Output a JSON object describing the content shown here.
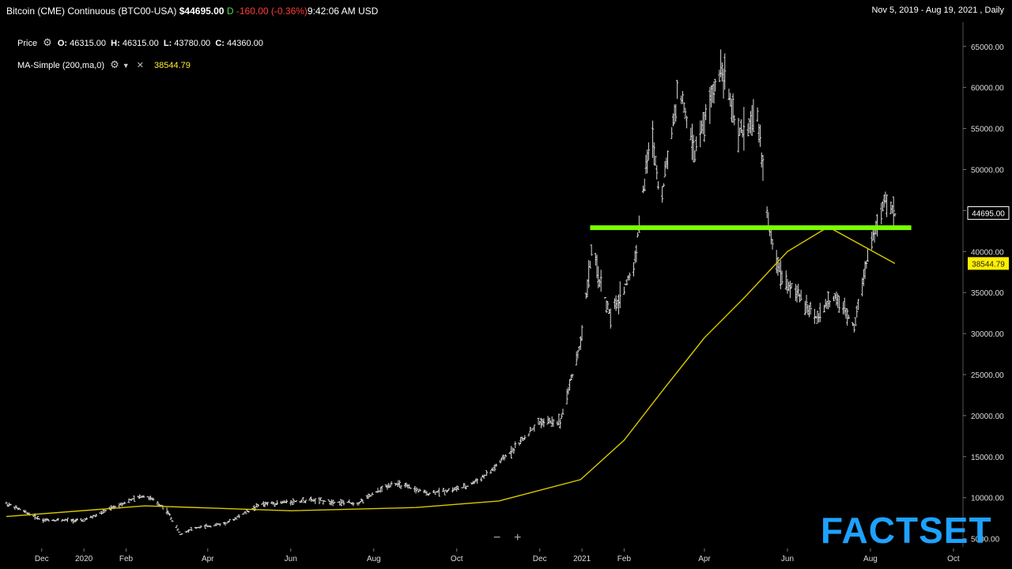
{
  "header": {
    "title": "Bitcoin (CME) Continuous (BTC00-USA)",
    "last_price": "$44695.00",
    "price_flag": "D",
    "change": "-160.00",
    "change_pct": "(-0.36%)",
    "time": "9:42:06 AM",
    "currency": "USD",
    "date_range": "Nov 5, 2019 - Aug 19, 2021 , Daily"
  },
  "legend": {
    "price_label": "Price",
    "ohlc": [
      {
        "key": "O:",
        "value": "46315.00"
      },
      {
        "key": "H:",
        "value": "46315.00"
      },
      {
        "key": "L:",
        "value": "43780.00"
      },
      {
        "key": "C:",
        "value": "44360.00"
      }
    ],
    "ma_label": "MA-Simple (200,ma,0)",
    "ma_value": "38544.79"
  },
  "controls": {
    "zoom_out": "−",
    "zoom_in": "+"
  },
  "brand": "FACTSET",
  "colors": {
    "background": "#000000",
    "bars": "#d8d8d8",
    "moving_average": "#d9c800",
    "support_line": "#7cfc00",
    "last_price_tag": "#ffffff",
    "ma_tag": "#ffee00",
    "brand": "#1ea2ff"
  },
  "chart_data": {
    "type": "ohlc",
    "title": "Bitcoin (CME) Continuous (BTC00-USA)",
    "frequency": "Daily",
    "x_ticks": [
      "Dec",
      "2020",
      "Feb",
      "Apr",
      "Jun",
      "Aug",
      "Oct",
      "Dec",
      "2021",
      "Feb",
      "Apr",
      "Jun",
      "Aug",
      "Oct"
    ],
    "y_ticks": [
      "65000.00",
      "60000.00",
      "55000.00",
      "50000.00",
      "45000.00",
      "40000.00",
      "35000.00",
      "30000.00",
      "25000.00",
      "20000.00",
      "15000.00",
      "10000.00",
      "5000.00"
    ],
    "ylim": [
      4000,
      67000
    ],
    "price_series": {
      "name": "Price",
      "x": [
        "2019-11-05",
        "2019-12-01",
        "2020-01-01",
        "2020-02-01",
        "2020-02-15",
        "2020-03-01",
        "2020-03-12",
        "2020-03-20",
        "2020-04-15",
        "2020-05-10",
        "2020-06-15",
        "2020-07-20",
        "2020-08-15",
        "2020-09-10",
        "2020-10-08",
        "2020-10-25",
        "2020-11-15",
        "2020-12-01",
        "2020-12-16",
        "2020-12-31",
        "2021-01-08",
        "2021-01-22",
        "2021-02-08",
        "2021-02-21",
        "2021-02-28",
        "2021-03-13",
        "2021-03-25",
        "2021-04-14",
        "2021-04-25",
        "2021-05-10",
        "2021-05-19",
        "2021-05-28",
        "2021-06-22",
        "2021-07-05",
        "2021-07-20",
        "2021-07-31",
        "2021-08-13",
        "2021-08-19"
      ],
      "values": [
        9300,
        7300,
        7200,
        9500,
        10300,
        8700,
        5500,
        6200,
        6900,
        9200,
        9700,
        9300,
        11800,
        10500,
        11300,
        13000,
        16500,
        19200,
        19300,
        28900,
        40000,
        32000,
        38000,
        55000,
        46000,
        60000,
        52000,
        63000,
        54000,
        56500,
        42000,
        37000,
        32000,
        34500,
        31000,
        40500,
        46500,
        44360
      ]
    },
    "moving_average": {
      "name": "MA-Simple (200,ma,0)",
      "x": [
        "2019-11-05",
        "2020-02-15",
        "2020-06-01",
        "2020-09-01",
        "2020-11-01",
        "2020-12-31",
        "2021-02-01",
        "2021-03-01",
        "2021-04-01",
        "2021-05-01",
        "2021-06-01",
        "2021-07-01",
        "2021-08-19"
      ],
      "values": [
        7700,
        9000,
        8400,
        8800,
        9600,
        12200,
        17000,
        23000,
        29500,
        34500,
        40000,
        43000,
        38544.79
      ]
    },
    "support_line": {
      "y": 42900,
      "x_start": "2021-01-07",
      "x_end": "2021-08-31"
    },
    "last_price_tag": "44695.00",
    "ma_tag": "38544.79"
  }
}
